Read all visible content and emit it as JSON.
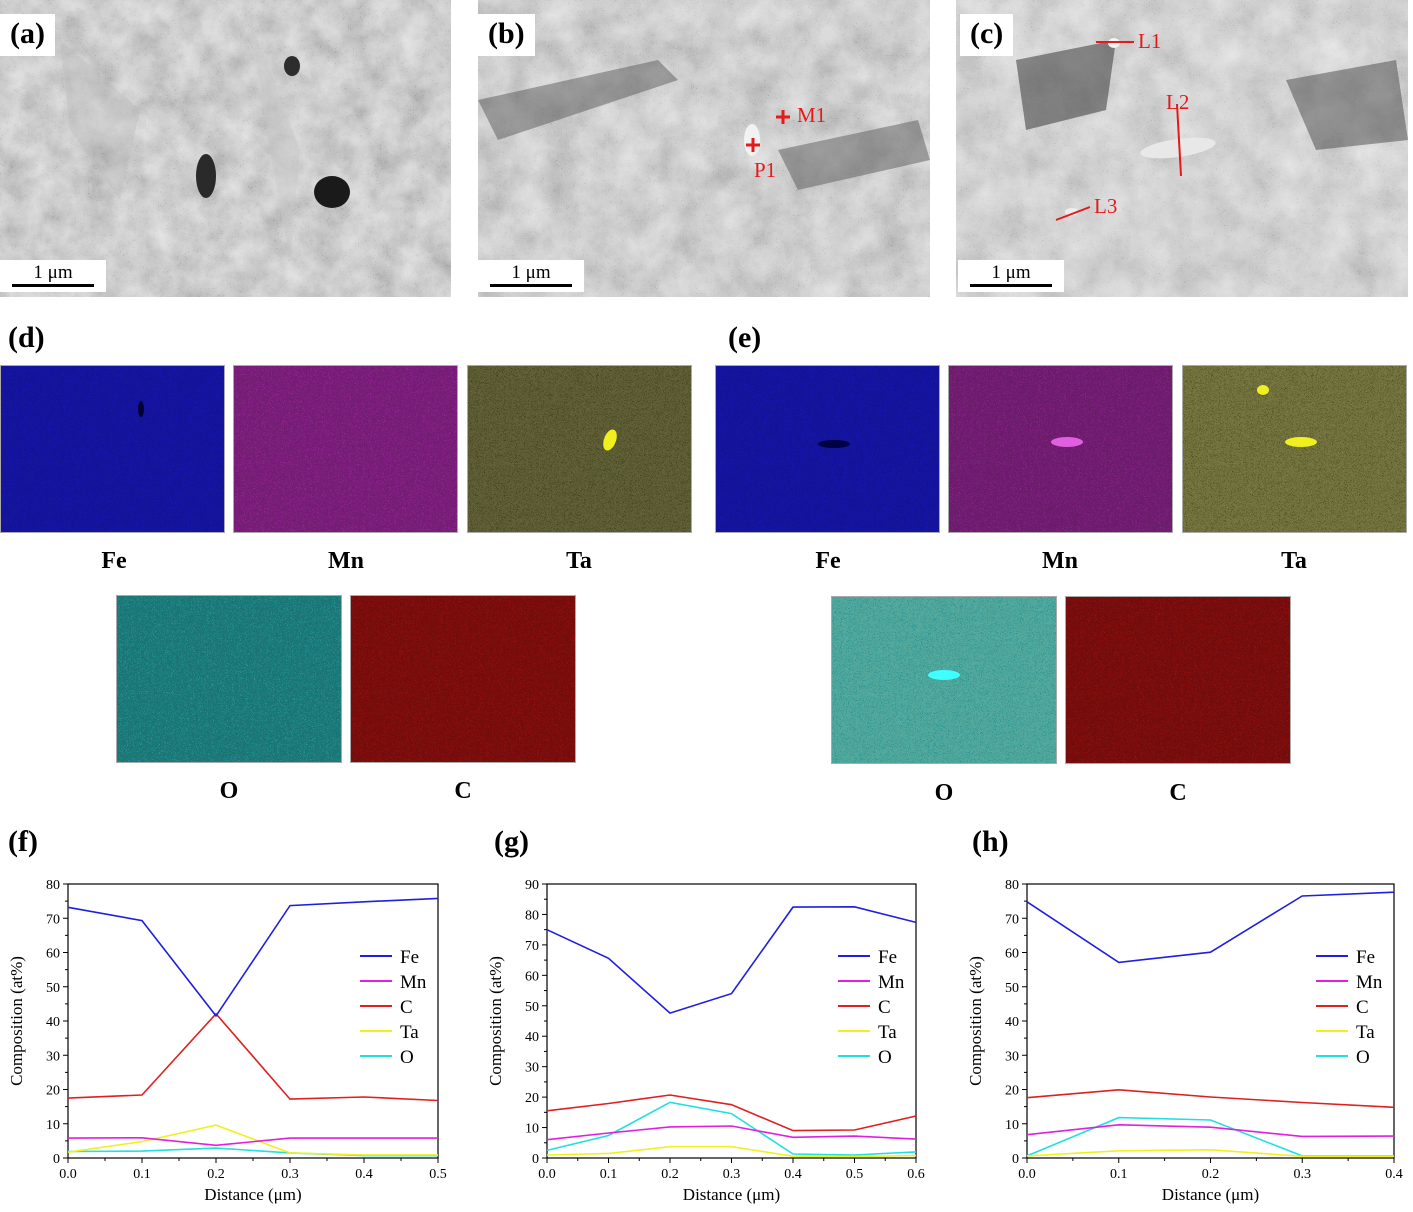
{
  "panels": {
    "a": "(a)",
    "b": "(b)",
    "c": "(c)",
    "d": "(d)",
    "e": "(e)",
    "f": "(f)",
    "g": "(g)",
    "h": "(h)"
  },
  "scale_bar": "1 μm",
  "point_labels": {
    "m1": "M1",
    "p1": "P1",
    "l1": "L1",
    "l2": "L2",
    "l3": "L3"
  },
  "eds_maps": {
    "elements": [
      {
        "symbol": "Fe",
        "color": "#1a1acc"
      },
      {
        "symbol": "Mn",
        "color": "#b22cb2"
      },
      {
        "symbol": "Ta",
        "color": "#3b3a14"
      },
      {
        "symbol": "O",
        "color": "#2bb3b3"
      },
      {
        "symbol": "C",
        "color": "#b31414"
      }
    ]
  },
  "chart_data": [
    {
      "type": "line",
      "panel": "(f)",
      "xlabel": "Distance (μm)",
      "ylabel": "Composition (at%)",
      "xlim": [
        0,
        0.5
      ],
      "ylim": [
        0,
        80
      ],
      "xticks": [
        "0.0",
        "0.1",
        "0.2",
        "0.3",
        "0.4",
        "0.5"
      ],
      "yticks": [
        "0",
        "10",
        "20",
        "30",
        "40",
        "50",
        "60",
        "70",
        "80"
      ],
      "legend": "right",
      "x": [
        0.0,
        0.1,
        0.2,
        0.3,
        0.4,
        0.5
      ],
      "series": [
        {
          "name": "Fe",
          "color": "#1f1fe0",
          "values": [
            73.2,
            69.3,
            41.5,
            73.7,
            74.8,
            75.8
          ]
        },
        {
          "name": "Mn",
          "color": "#e01fe0",
          "values": [
            5.8,
            5.9,
            3.7,
            5.8,
            5.8,
            5.8
          ]
        },
        {
          "name": "C",
          "color": "#e01f1f",
          "values": [
            17.5,
            18.4,
            42.1,
            17.2,
            17.8,
            16.8
          ]
        },
        {
          "name": "Ta",
          "color": "#f0f020",
          "values": [
            1.7,
            4.8,
            9.6,
            1.5,
            0.9,
            0.9
          ]
        },
        {
          "name": "O",
          "color": "#20e0e0",
          "values": [
            1.9,
            2.0,
            2.9,
            1.5,
            0.7,
            0.7
          ]
        }
      ]
    },
    {
      "type": "line",
      "panel": "(g)",
      "xlabel": "Distance (μm)",
      "ylabel": "Composition (at%)",
      "xlim": [
        0,
        0.6
      ],
      "ylim": [
        0,
        90
      ],
      "xticks": [
        "0.0",
        "0.1",
        "0.2",
        "0.3",
        "0.4",
        "0.5",
        "0.6"
      ],
      "yticks": [
        "0",
        "10",
        "20",
        "30",
        "40",
        "50",
        "60",
        "70",
        "80",
        "90"
      ],
      "legend": "right",
      "x": [
        0.0,
        0.1,
        0.2,
        0.3,
        0.4,
        0.5,
        0.6
      ],
      "series": [
        {
          "name": "Fe",
          "color": "#1f1fe0",
          "values": [
            75.0,
            65.6,
            47.6,
            54.0,
            82.4,
            82.5,
            77.4
          ]
        },
        {
          "name": "Mn",
          "color": "#e01fe0",
          "values": [
            6.0,
            8.2,
            10.2,
            10.5,
            6.8,
            7.2,
            6.2
          ]
        },
        {
          "name": "C",
          "color": "#e01f1f",
          "values": [
            15.5,
            17.9,
            20.7,
            17.5,
            9.0,
            9.2,
            13.8
          ]
        },
        {
          "name": "Ta",
          "color": "#f0f020",
          "values": [
            1.0,
            1.5,
            3.7,
            3.7,
            0.6,
            0.5,
            0.8
          ]
        },
        {
          "name": "O",
          "color": "#20e0e0",
          "values": [
            2.5,
            7.4,
            18.3,
            14.6,
            1.3,
            1.0,
            2.0
          ]
        }
      ]
    },
    {
      "type": "line",
      "panel": "(h)",
      "xlabel": "Distance (μm)",
      "ylabel": "Composition (at%)",
      "xlim": [
        0,
        0.4
      ],
      "ylim": [
        0,
        80
      ],
      "xticks": [
        "0.0",
        "0.1",
        "0.2",
        "0.3",
        "0.4"
      ],
      "yticks": [
        "0",
        "10",
        "20",
        "30",
        "40",
        "50",
        "60",
        "70",
        "80"
      ],
      "legend": "right",
      "x": [
        0.0,
        0.1,
        0.2,
        0.3,
        0.4
      ],
      "series": [
        {
          "name": "Fe",
          "color": "#1f1fe0",
          "values": [
            74.8,
            57.1,
            60.1,
            76.5,
            77.6
          ]
        },
        {
          "name": "Mn",
          "color": "#e01fe0",
          "values": [
            6.8,
            9.7,
            9.0,
            6.3,
            6.4
          ]
        },
        {
          "name": "C",
          "color": "#e01f1f",
          "values": [
            17.6,
            19.9,
            17.8,
            16.2,
            14.8
          ]
        },
        {
          "name": "Ta",
          "color": "#f0f020",
          "values": [
            0.6,
            2.1,
            2.4,
            0.5,
            0.5
          ]
        },
        {
          "name": "O",
          "color": "#20e0e0",
          "values": [
            0.6,
            11.8,
            11.1,
            0.6,
            0.6
          ]
        }
      ]
    }
  ]
}
